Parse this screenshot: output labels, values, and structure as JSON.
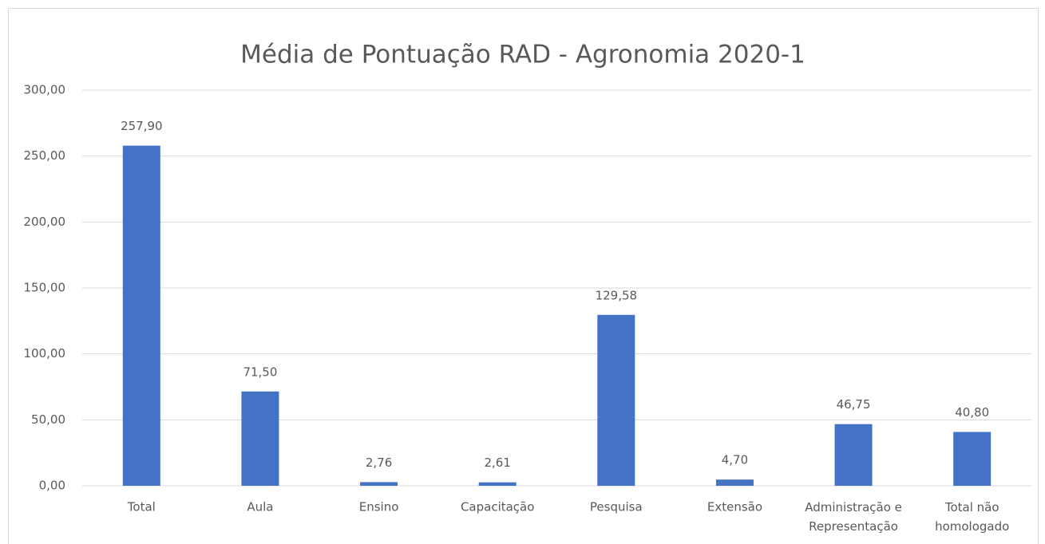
{
  "chart_data": {
    "type": "bar",
    "title": "Média de Pontuação RAD - Agronomia 2020-1",
    "categories": [
      "Total",
      "Aula",
      "Ensino",
      "Capacitação",
      "Pesquisa",
      "Extensão",
      "Administração e Representação",
      "Total não homologado"
    ],
    "values": [
      257.9,
      71.5,
      2.76,
      2.61,
      129.58,
      4.7,
      46.75,
      40.8
    ],
    "value_labels": [
      "257,90",
      "71,50",
      "2,76",
      "2,61",
      "129,58",
      "4,70",
      "46,75",
      "40,80"
    ],
    "color": "#4472c4",
    "ylim": [
      0,
      300
    ],
    "yticks": [
      {
        "value": 0,
        "label": "0,00"
      },
      {
        "value": 50,
        "label": "50,00"
      },
      {
        "value": 100,
        "label": "100,00"
      },
      {
        "value": 150,
        "label": "150,00"
      },
      {
        "value": 200,
        "label": "200,00"
      },
      {
        "value": 250,
        "label": "250,00"
      },
      {
        "value": 300,
        "label": "300,00"
      }
    ],
    "grid": true
  }
}
